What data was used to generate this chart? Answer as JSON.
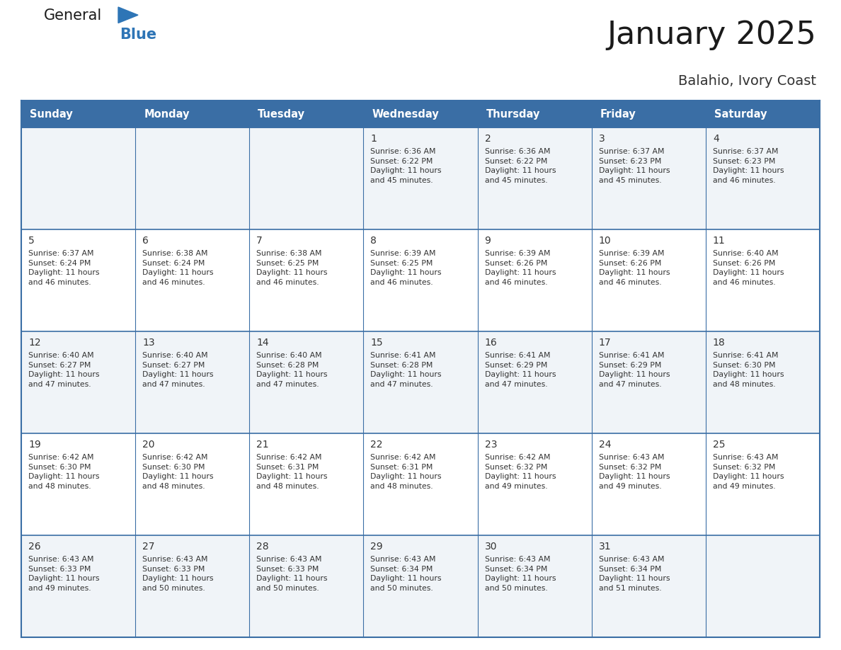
{
  "title": "January 2025",
  "subtitle": "Balahio, Ivory Coast",
  "days_of_week": [
    "Sunday",
    "Monday",
    "Tuesday",
    "Wednesday",
    "Thursday",
    "Friday",
    "Saturday"
  ],
  "header_bg_color": "#3A6EA5",
  "header_text_color": "#FFFFFF",
  "border_color": "#3A6EA5",
  "text_color": "#333333",
  "title_color": "#1a1a1a",
  "subtitle_color": "#333333",
  "logo_dark_color": "#1a1a1a",
  "logo_blue_color": "#2E75B6",
  "row_bg_even": "#FFFFFF",
  "row_bg_odd": "#F0F4F8",
  "calendar_data": [
    [
      "",
      "",
      "",
      "1\nSunrise: 6:36 AM\nSunset: 6:22 PM\nDaylight: 11 hours\nand 45 minutes.",
      "2\nSunrise: 6:36 AM\nSunset: 6:22 PM\nDaylight: 11 hours\nand 45 minutes.",
      "3\nSunrise: 6:37 AM\nSunset: 6:23 PM\nDaylight: 11 hours\nand 45 minutes.",
      "4\nSunrise: 6:37 AM\nSunset: 6:23 PM\nDaylight: 11 hours\nand 46 minutes."
    ],
    [
      "5\nSunrise: 6:37 AM\nSunset: 6:24 PM\nDaylight: 11 hours\nand 46 minutes.",
      "6\nSunrise: 6:38 AM\nSunset: 6:24 PM\nDaylight: 11 hours\nand 46 minutes.",
      "7\nSunrise: 6:38 AM\nSunset: 6:25 PM\nDaylight: 11 hours\nand 46 minutes.",
      "8\nSunrise: 6:39 AM\nSunset: 6:25 PM\nDaylight: 11 hours\nand 46 minutes.",
      "9\nSunrise: 6:39 AM\nSunset: 6:26 PM\nDaylight: 11 hours\nand 46 minutes.",
      "10\nSunrise: 6:39 AM\nSunset: 6:26 PM\nDaylight: 11 hours\nand 46 minutes.",
      "11\nSunrise: 6:40 AM\nSunset: 6:26 PM\nDaylight: 11 hours\nand 46 minutes."
    ],
    [
      "12\nSunrise: 6:40 AM\nSunset: 6:27 PM\nDaylight: 11 hours\nand 47 minutes.",
      "13\nSunrise: 6:40 AM\nSunset: 6:27 PM\nDaylight: 11 hours\nand 47 minutes.",
      "14\nSunrise: 6:40 AM\nSunset: 6:28 PM\nDaylight: 11 hours\nand 47 minutes.",
      "15\nSunrise: 6:41 AM\nSunset: 6:28 PM\nDaylight: 11 hours\nand 47 minutes.",
      "16\nSunrise: 6:41 AM\nSunset: 6:29 PM\nDaylight: 11 hours\nand 47 minutes.",
      "17\nSunrise: 6:41 AM\nSunset: 6:29 PM\nDaylight: 11 hours\nand 47 minutes.",
      "18\nSunrise: 6:41 AM\nSunset: 6:30 PM\nDaylight: 11 hours\nand 48 minutes."
    ],
    [
      "19\nSunrise: 6:42 AM\nSunset: 6:30 PM\nDaylight: 11 hours\nand 48 minutes.",
      "20\nSunrise: 6:42 AM\nSunset: 6:30 PM\nDaylight: 11 hours\nand 48 minutes.",
      "21\nSunrise: 6:42 AM\nSunset: 6:31 PM\nDaylight: 11 hours\nand 48 minutes.",
      "22\nSunrise: 6:42 AM\nSunset: 6:31 PM\nDaylight: 11 hours\nand 48 minutes.",
      "23\nSunrise: 6:42 AM\nSunset: 6:32 PM\nDaylight: 11 hours\nand 49 minutes.",
      "24\nSunrise: 6:43 AM\nSunset: 6:32 PM\nDaylight: 11 hours\nand 49 minutes.",
      "25\nSunrise: 6:43 AM\nSunset: 6:32 PM\nDaylight: 11 hours\nand 49 minutes."
    ],
    [
      "26\nSunrise: 6:43 AM\nSunset: 6:33 PM\nDaylight: 11 hours\nand 49 minutes.",
      "27\nSunrise: 6:43 AM\nSunset: 6:33 PM\nDaylight: 11 hours\nand 50 minutes.",
      "28\nSunrise: 6:43 AM\nSunset: 6:33 PM\nDaylight: 11 hours\nand 50 minutes.",
      "29\nSunrise: 6:43 AM\nSunset: 6:34 PM\nDaylight: 11 hours\nand 50 minutes.",
      "30\nSunrise: 6:43 AM\nSunset: 6:34 PM\nDaylight: 11 hours\nand 50 minutes.",
      "31\nSunrise: 6:43 AM\nSunset: 6:34 PM\nDaylight: 11 hours\nand 51 minutes.",
      ""
    ]
  ],
  "figsize": [
    11.88,
    9.18
  ],
  "dpi": 100
}
